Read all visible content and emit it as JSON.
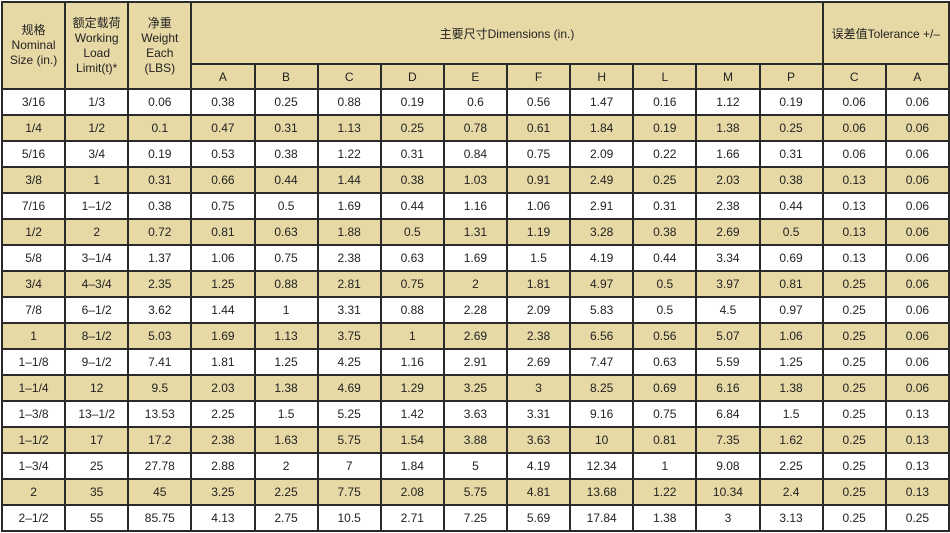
{
  "header": {
    "size": [
      "规格",
      "Nominal",
      "Size (in.)"
    ],
    "load": [
      "额定载荷",
      "Working",
      "Load",
      "Limit(t)*"
    ],
    "weight": [
      "净重",
      "Weight",
      "Each",
      "(LBS)"
    ],
    "dimensions": "主要尺寸Dimensions (in.)",
    "tolerance": "误差值Tolerance +/–",
    "dimension_columns": [
      "A",
      "B",
      "C",
      "D",
      "E",
      "F",
      "H",
      "L",
      "M",
      "P"
    ],
    "tolerance_columns": [
      "C",
      "A"
    ]
  },
  "colors": {
    "header_bg": "#e7d9a5",
    "alt_row_bg": "#e7d9a5",
    "border": "#2a2a2a"
  },
  "rows": [
    [
      "3/16",
      "1/3",
      "0.06",
      "0.38",
      "0.25",
      "0.88",
      "0.19",
      "0.6",
      "0.56",
      "1.47",
      "0.16",
      "1.12",
      "0.19",
      "0.06",
      "0.06"
    ],
    [
      "1/4",
      "1/2",
      "0.1",
      "0.47",
      "0.31",
      "1.13",
      "0.25",
      "0.78",
      "0.61",
      "1.84",
      "0.19",
      "1.38",
      "0.25",
      "0.06",
      "0.06"
    ],
    [
      "5/16",
      "3/4",
      "0.19",
      "0.53",
      "0.38",
      "1.22",
      "0.31",
      "0.84",
      "0.75",
      "2.09",
      "0.22",
      "1.66",
      "0.31",
      "0.06",
      "0.06"
    ],
    [
      "3/8",
      "1",
      "0.31",
      "0.66",
      "0.44",
      "1.44",
      "0.38",
      "1.03",
      "0.91",
      "2.49",
      "0.25",
      "2.03",
      "0.38",
      "0.13",
      "0.06"
    ],
    [
      "7/16",
      "1–1/2",
      "0.38",
      "0.75",
      "0.5",
      "1.69",
      "0.44",
      "1.16",
      "1.06",
      "2.91",
      "0.31",
      "2.38",
      "0.44",
      "0.13",
      "0.06"
    ],
    [
      "1/2",
      "2",
      "0.72",
      "0.81",
      "0.63",
      "1.88",
      "0.5",
      "1.31",
      "1.19",
      "3.28",
      "0.38",
      "2.69",
      "0.5",
      "0.13",
      "0.06"
    ],
    [
      "5/8",
      "3–1/4",
      "1.37",
      "1.06",
      "0.75",
      "2.38",
      "0.63",
      "1.69",
      "1.5",
      "4.19",
      "0.44",
      "3.34",
      "0.69",
      "0.13",
      "0.06"
    ],
    [
      "3/4",
      "4–3/4",
      "2.35",
      "1.25",
      "0.88",
      "2.81",
      "0.75",
      "2",
      "1.81",
      "4.97",
      "0.5",
      "3.97",
      "0.81",
      "0.25",
      "0.06"
    ],
    [
      "7/8",
      "6–1/2",
      "3.62",
      "1.44",
      "1",
      "3.31",
      "0.88",
      "2.28",
      "2.09",
      "5.83",
      "0.5",
      "4.5",
      "0.97",
      "0.25",
      "0.06"
    ],
    [
      "1",
      "8–1/2",
      "5.03",
      "1.69",
      "1.13",
      "3.75",
      "1",
      "2.69",
      "2.38",
      "6.56",
      "0.56",
      "5.07",
      "1.06",
      "0.25",
      "0.06"
    ],
    [
      "1–1/8",
      "9–1/2",
      "7.41",
      "1.81",
      "1.25",
      "4.25",
      "1.16",
      "2.91",
      "2.69",
      "7.47",
      "0.63",
      "5.59",
      "1.25",
      "0.25",
      "0.06"
    ],
    [
      "1–1/4",
      "12",
      "9.5",
      "2.03",
      "1.38",
      "4.69",
      "1.29",
      "3.25",
      "3",
      "8.25",
      "0.69",
      "6.16",
      "1.38",
      "0.25",
      "0.06"
    ],
    [
      "1–3/8",
      "13–1/2",
      "13.53",
      "2.25",
      "1.5",
      "5.25",
      "1.42",
      "3.63",
      "3.31",
      "9.16",
      "0.75",
      "6.84",
      "1.5",
      "0.25",
      "0.13"
    ],
    [
      "1–1/2",
      "17",
      "17.2",
      "2.38",
      "1.63",
      "5.75",
      "1.54",
      "3.88",
      "3.63",
      "10",
      "0.81",
      "7.35",
      "1.62",
      "0.25",
      "0.13"
    ],
    [
      "1–3/4",
      "25",
      "27.78",
      "2.88",
      "2",
      "7",
      "1.84",
      "5",
      "4.19",
      "12.34",
      "1",
      "9.08",
      "2.25",
      "0.25",
      "0.13"
    ],
    [
      "2",
      "35",
      "45",
      "3.25",
      "2.25",
      "7.75",
      "2.08",
      "5.75",
      "4.81",
      "13.68",
      "1.22",
      "10.34",
      "2.4",
      "0.25",
      "0.13"
    ],
    [
      "2–1/2",
      "55",
      "85.75",
      "4.13",
      "2.75",
      "10.5",
      "2.71",
      "7.25",
      "5.69",
      "17.84",
      "1.38",
      "3",
      "3.13",
      "0.25",
      "0.25"
    ]
  ]
}
